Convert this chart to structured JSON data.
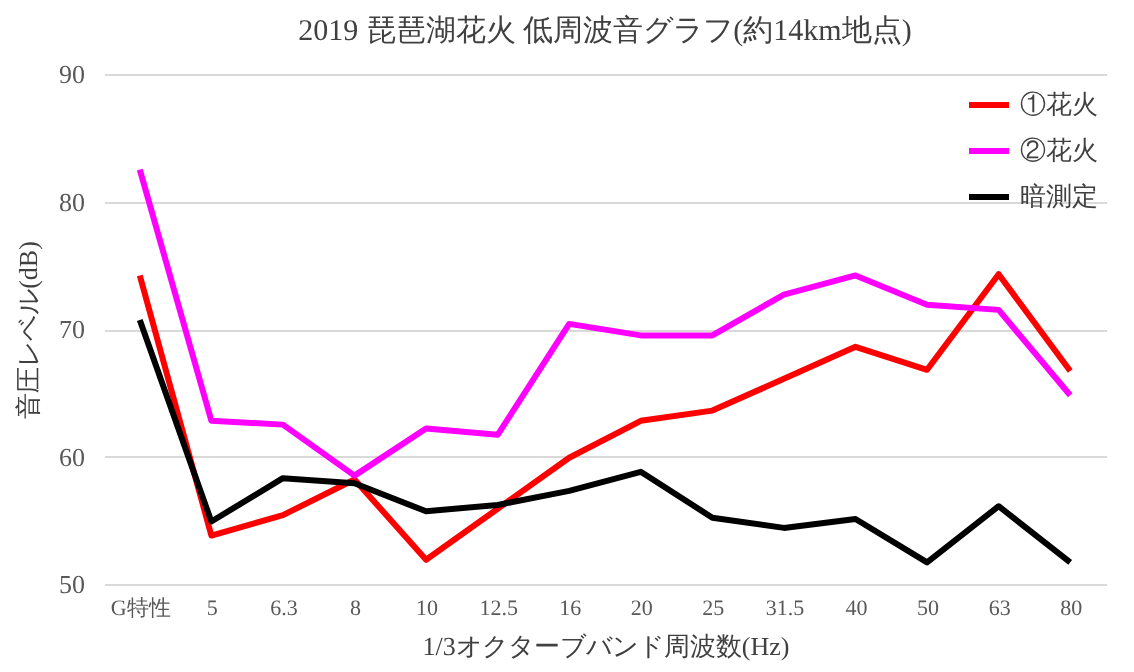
{
  "chart_data": {
    "type": "line",
    "title": "2019  琵琶湖花火  低周波音グラフ(約14km地点)",
    "xlabel": "1/3オクターブバンド周波数(Hz)",
    "ylabel": "音圧レベル(dB)",
    "categories": [
      "G特性",
      "5",
      "6.3",
      "8",
      "10",
      "12.5",
      "16",
      "20",
      "25",
      "31.5",
      "40",
      "50",
      "63",
      "80"
    ],
    "series": [
      {
        "name": "①花火",
        "color": "#ff0000",
        "values": [
          74.2,
          53.8,
          55.4,
          58.2,
          51.9,
          55.9,
          59.9,
          62.8,
          63.6,
          66.1,
          68.6,
          66.8,
          74.3,
          66.7
        ]
      },
      {
        "name": "②花火",
        "color": "#ff00ff",
        "values": [
          82.5,
          62.8,
          62.5,
          58.5,
          62.2,
          61.7,
          70.4,
          69.5,
          69.5,
          72.7,
          74.2,
          71.9,
          71.5,
          64.8
        ]
      },
      {
        "name": "暗測定",
        "color": "#000000",
        "values": [
          70.7,
          54.9,
          58.3,
          57.9,
          55.7,
          56.2,
          57.3,
          58.8,
          55.2,
          54.4,
          55.1,
          51.7,
          56.1,
          51.7
        ]
      }
    ],
    "ylim": [
      50,
      90
    ],
    "yticks": [
      50,
      60,
      70,
      80,
      90
    ],
    "grid": "y",
    "legend": "top right",
    "marker": "none",
    "line_style": "solid"
  }
}
